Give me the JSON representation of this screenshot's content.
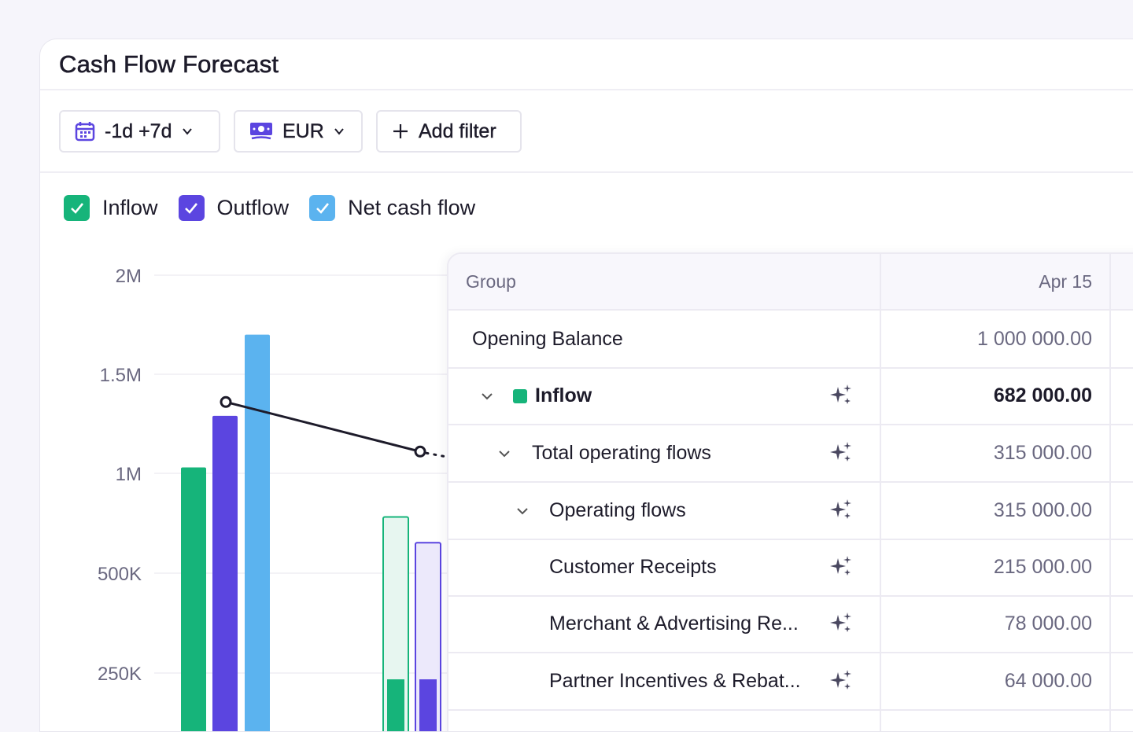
{
  "header": {
    "title": "Cash Flow Forecast"
  },
  "toolbar": {
    "date_range": "-1d +7d",
    "currency": "EUR",
    "add_filter": "Add filter"
  },
  "legend": {
    "inflow": {
      "label": "Inflow",
      "color": "#16b47a",
      "checked": true
    },
    "outflow": {
      "label": "Outflow",
      "color": "#5b45e0",
      "checked": true
    },
    "net": {
      "label": "Net cash flow",
      "color": "#5bb3ef",
      "checked": true
    }
  },
  "chart_data": {
    "type": "bar",
    "y_ticks": [
      "2M",
      "1.5M",
      "1M",
      "500K",
      "250K"
    ],
    "series": [
      {
        "name": "Inflow",
        "color": "#16b47a",
        "values": [
          1030000,
          780000
        ]
      },
      {
        "name": "Outflow",
        "color": "#5b45e0",
        "values": [
          1290000,
          650000
        ]
      },
      {
        "name": "Net cash flow",
        "color": "#5bb3ef",
        "values": [
          1700000,
          null
        ]
      }
    ],
    "line": {
      "values": [
        1360000,
        1110000
      ]
    },
    "forecast_actuals": {
      "inflow": 220000,
      "outflow": 220000
    }
  },
  "table": {
    "headers": {
      "group": "Group",
      "date": "Apr 15"
    },
    "rows": [
      {
        "label": "Opening Balance",
        "value": "1 000 000.00"
      },
      {
        "label": "Inflow",
        "value": "682 000.00"
      },
      {
        "label": "Total operating flows",
        "value": "315 000.00"
      },
      {
        "label": "Operating flows",
        "value": "315 000.00"
      },
      {
        "label": "Customer Receipts",
        "value": "215 000.00"
      },
      {
        "label": "Merchant & Advertising Re...",
        "value": "78 000.00"
      },
      {
        "label": "Partner Incentives & Rebat...",
        "value": "64 000.00"
      }
    ]
  }
}
